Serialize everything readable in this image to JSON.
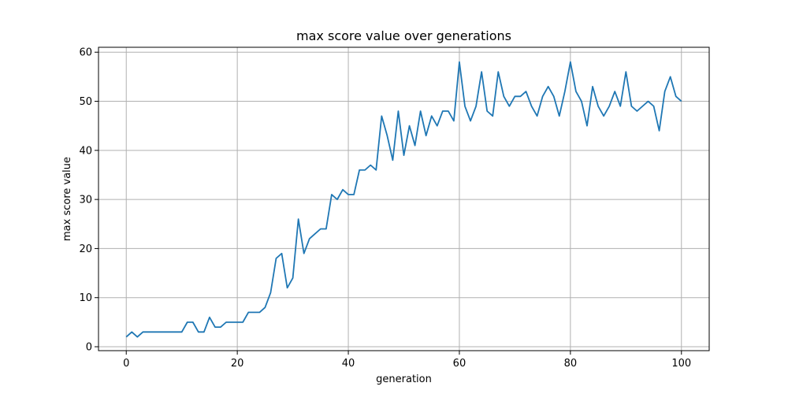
{
  "chart_data": {
    "type": "line",
    "title": "max score value over generations",
    "xlabel": "generation",
    "ylabel": "max score value",
    "xlim": [
      -5,
      105
    ],
    "ylim": [
      -0.8,
      61
    ],
    "xticks": [
      0,
      20,
      40,
      60,
      80,
      100
    ],
    "yticks": [
      0,
      10,
      20,
      30,
      40,
      50,
      60
    ],
    "grid": true,
    "legend": "none",
    "series": [
      {
        "color": "#1f77b4",
        "x": [
          0,
          1,
          2,
          3,
          4,
          5,
          6,
          7,
          8,
          9,
          10,
          11,
          12,
          13,
          14,
          15,
          16,
          17,
          18,
          19,
          20,
          21,
          22,
          23,
          24,
          25,
          26,
          27,
          28,
          29,
          30,
          31,
          32,
          33,
          34,
          35,
          36,
          37,
          38,
          39,
          40,
          41,
          42,
          43,
          44,
          45,
          46,
          47,
          48,
          49,
          50,
          51,
          52,
          53,
          54,
          55,
          56,
          57,
          58,
          59,
          60,
          61,
          62,
          63,
          64,
          65,
          66,
          67,
          68,
          69,
          70,
          71,
          72,
          73,
          74,
          75,
          76,
          77,
          78,
          79,
          80,
          81,
          82,
          83,
          84,
          85,
          86,
          87,
          88,
          89,
          90,
          91,
          92,
          93,
          94,
          95,
          96,
          97,
          98,
          99,
          100
        ],
        "values": [
          2,
          3,
          2,
          3,
          3,
          3,
          3,
          3,
          3,
          3,
          3,
          5,
          5,
          3,
          3,
          6,
          4,
          4,
          5,
          5,
          5,
          5,
          7,
          7,
          7,
          8,
          11,
          18,
          19,
          12,
          14,
          26,
          19,
          22,
          23,
          24,
          24,
          31,
          30,
          32,
          31,
          31,
          36,
          36,
          37,
          36,
          47,
          43,
          38,
          48,
          39,
          45,
          41,
          48,
          43,
          47,
          45,
          48,
          48,
          46,
          58,
          49,
          46,
          49,
          56,
          48,
          47,
          56,
          51,
          49,
          51,
          51,
          52,
          49,
          47,
          51,
          53,
          51,
          47,
          52,
          58,
          52,
          50,
          45,
          53,
          49,
          47,
          49,
          52,
          49,
          56,
          49,
          48,
          49,
          50,
          49,
          44,
          52,
          55,
          51,
          50
        ]
      }
    ]
  }
}
